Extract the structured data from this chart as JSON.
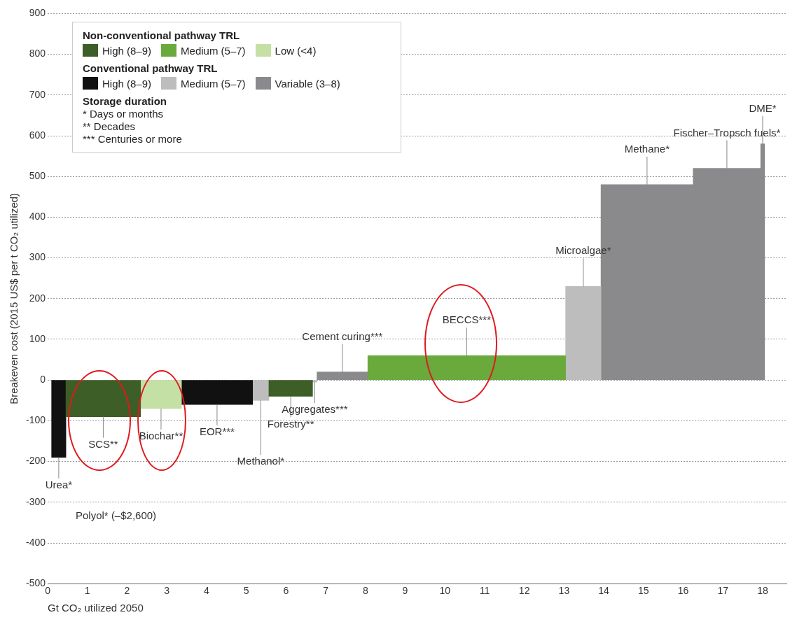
{
  "chart_data": {
    "type": "histogram",
    "xlabel": "Gt CO₂ utilized 2050",
    "ylabel": "Breakeven cost (2015 US$ per t CO₂ utilized)",
    "bins": [
      0.1,
      0.46,
      2.34,
      3.37,
      5.16,
      5.57,
      6.67,
      6.78,
      8.06,
      13.04,
      13.93,
      16.25,
      17.95,
      18.05
    ],
    "series": [
      {
        "name": "High (8–9)",
        "color": "#3d5e26",
        "values": [
          null,
          -90,
          null,
          null,
          null,
          -40,
          null,
          null,
          null,
          null,
          null,
          null,
          null
        ]
      },
      {
        "name": "Medium (5–7)",
        "color": "#6aaa3c",
        "values": [
          null,
          null,
          null,
          null,
          null,
          null,
          null,
          null,
          60,
          null,
          null,
          null,
          null
        ]
      },
      {
        "name": "Low (<4)",
        "color": "#c5e0a5",
        "values": [
          null,
          null,
          -70,
          null,
          null,
          null,
          null,
          null,
          null,
          null,
          null,
          null,
          null
        ]
      },
      {
        "name": "High (8–9)",
        "color": "#111111",
        "values": [
          -190,
          null,
          null,
          -60,
          null,
          null,
          null,
          null,
          null,
          null,
          null,
          null,
          null
        ]
      },
      {
        "name": "Medium (5–7)",
        "color": "#bdbdbd",
        "values": [
          null,
          null,
          null,
          null,
          -50,
          null,
          -5,
          null,
          null,
          230,
          null,
          null,
          null
        ]
      },
      {
        "name": "Variable (3–8)",
        "color": "#8a8a8c",
        "values": [
          null,
          null,
          null,
          null,
          null,
          null,
          null,
          20,
          null,
          null,
          480,
          520,
          580
        ]
      }
    ],
    "legend_title": "Non-conventional pathway TRL",
    "legend": "top left",
    "xlim": [
      0,
      18.6
    ],
    "xticks": [
      0,
      1,
      2,
      3,
      4,
      5,
      6,
      7,
      8,
      9,
      10,
      11,
      12,
      13,
      14,
      15,
      16,
      17,
      18
    ],
    "ylim": [
      -500,
      900
    ],
    "yticks": [
      -500,
      -400,
      -300,
      -200,
      -100,
      0,
      100,
      200,
      300,
      400,
      500,
      600,
      700,
      800,
      900
    ],
    "grid": "y",
    "annotations": [
      "Conventional pathway TRL",
      "Storage duration",
      "*  Days or months",
      "**  Decades",
      "***  Centuries or more",
      "Polyol* (–$2,600)",
      {
        "text": "Urea*",
        "x": 0.28,
        "y": -190
      },
      {
        "text": "SCS**",
        "x": 1.4,
        "y": -90
      },
      {
        "text": "Biochar**",
        "x": 2.855,
        "y": -70
      },
      {
        "text": "EOR***",
        "x": 4.265,
        "y": -60
      },
      {
        "text": "Methanol*",
        "x": 5.365,
        "y": -50
      },
      {
        "text": "Forestry**",
        "x": 6.12,
        "y": -40
      },
      {
        "text": "Aggregates***",
        "x": 6.725,
        "y": -5
      },
      {
        "text": "Cement curing***",
        "x": 7.42,
        "y": 20
      },
      {
        "text": "BECCS***",
        "x": 10.55,
        "y": 60
      },
      {
        "text": "Microalgae*",
        "x": 13.485,
        "y": 230
      },
      {
        "text": "Methane*",
        "x": 15.09,
        "y": 480
      },
      {
        "text": "Fischer–Tropsch fuels*",
        "x": 17.1,
        "y": 520
      },
      {
        "text": "DME*",
        "x": 18.0,
        "y": 580
      }
    ]
  }
}
